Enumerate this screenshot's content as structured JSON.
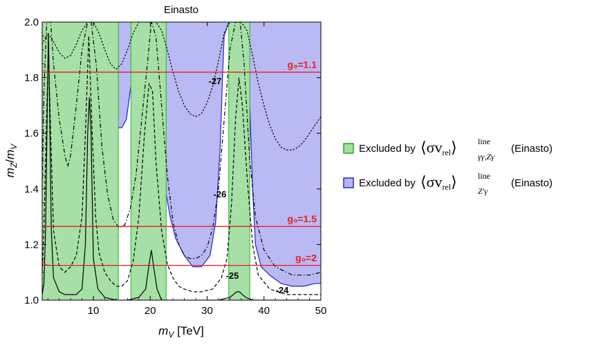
{
  "chart_data": {
    "type": "line",
    "title": "Einasto",
    "xlabel": "m_V [TeV]",
    "ylabel": "m_Z/m_V",
    "xlim": [
      1,
      50
    ],
    "ylim": [
      1.0,
      2.0
    ],
    "x_ticks": [
      10,
      20,
      30,
      40,
      50
    ],
    "y_ticks": [
      1.0,
      1.2,
      1.4,
      1.6,
      1.8,
      2.0
    ],
    "x_tick_labels": [
      "10",
      "20",
      "30",
      "40",
      "50"
    ],
    "y_tick_labels": [
      "1.0",
      "1.2",
      "1.4",
      "1.6",
      "1.8",
      "2.0"
    ],
    "excluded_green_bands": [
      [
        1,
        14.4
      ],
      [
        16.6,
        22.8
      ],
      [
        33.8,
        37.5
      ]
    ],
    "excluded_blue_boundary": [
      [
        14.4,
        1.62
      ],
      [
        15.0,
        1.62
      ],
      [
        15.8,
        1.65
      ],
      [
        16.6,
        1.77
      ],
      [
        22.8,
        1.38
      ],
      [
        23.5,
        1.3
      ],
      [
        24.5,
        1.22
      ],
      [
        26,
        1.16
      ],
      [
        27.5,
        1.12
      ],
      [
        29,
        1.12
      ],
      [
        30.5,
        1.16
      ],
      [
        31.5,
        1.28
      ],
      [
        32.3,
        1.55
      ],
      [
        32.7,
        1.8
      ],
      [
        33.0,
        1.95
      ],
      [
        33.8,
        2.0
      ],
      [
        37.5,
        1.7
      ],
      [
        38.0,
        1.4
      ],
      [
        38.5,
        1.2
      ],
      [
        39.5,
        1.12
      ],
      [
        41,
        1.09
      ],
      [
        43,
        1.06
      ],
      [
        45,
        1.05
      ],
      [
        47,
        1.05
      ],
      [
        49,
        1.06
      ],
      [
        50,
        1.06
      ]
    ],
    "horizontal_lines": [
      {
        "label": "g₀=1.1",
        "y": 1.82
      },
      {
        "label": "g₀=1.5",
        "y": 1.265
      },
      {
        "label": "g₀=2",
        "y": 1.125
      }
    ],
    "contour_labels": [
      "-27",
      "-26",
      "-25",
      "-24"
    ],
    "series": [
      {
        "label": "-24",
        "style": "solid",
        "x": [
          1,
          1.3,
          1.6,
          1.9,
          2.1,
          2.3,
          2.6,
          3,
          4,
          5,
          6,
          7,
          8,
          8.6,
          9,
          9.3,
          9.6,
          10,
          10.8,
          12,
          14,
          16,
          18,
          19.2,
          19.8,
          20.2,
          20.6,
          21.2,
          22,
          24,
          28,
          32,
          34,
          35.2,
          35.7,
          36.2,
          36.8,
          38,
          42,
          46,
          50
        ],
        "y": [
          1.02,
          1.06,
          1.25,
          1.7,
          1.96,
          1.7,
          1.25,
          1.08,
          1.03,
          1.02,
          1.02,
          1.02,
          1.04,
          1.2,
          1.6,
          1.73,
          1.6,
          1.15,
          1.04,
          1.01,
          1.0,
          1.0,
          1.01,
          1.04,
          1.13,
          1.18,
          1.12,
          1.04,
          1.0,
          1.0,
          1.0,
          1.0,
          1.01,
          1.03,
          1.03,
          1.02,
          1.01,
          1.0,
          1.0,
          1.0,
          1.0
        ]
      },
      {
        "label": "-25",
        "style": "dashed",
        "x": [
          1,
          1.3,
          1.7,
          2.1,
          2.5,
          3,
          4,
          5,
          6,
          7,
          8,
          8.6,
          9.2,
          9.8,
          10.4,
          11,
          12,
          13,
          14,
          15,
          16,
          17,
          18,
          19,
          19.8,
          20.4,
          21,
          22,
          23,
          24,
          25,
          26,
          27.5,
          29,
          31,
          32.5,
          33.5,
          34.3,
          35,
          35.6,
          36.2,
          37,
          38,
          39,
          41,
          44,
          47,
          50
        ],
        "y": [
          1.1,
          1.25,
          1.6,
          1.9,
          1.6,
          1.25,
          1.12,
          1.1,
          1.12,
          1.16,
          1.3,
          1.6,
          1.95,
          1.6,
          1.3,
          1.17,
          1.1,
          1.07,
          1.05,
          1.05,
          1.07,
          1.14,
          1.3,
          1.6,
          1.78,
          1.75,
          1.5,
          1.25,
          1.13,
          1.08,
          1.05,
          1.04,
          1.03,
          1.03,
          1.04,
          1.08,
          1.15,
          1.35,
          1.65,
          1.8,
          1.7,
          1.45,
          1.2,
          1.09,
          1.04,
          1.02,
          1.02,
          1.02
        ]
      },
      {
        "label": "-26",
        "style": "dashdot",
        "x": [
          1,
          1.3,
          1.8,
          2.5,
          3,
          4,
          5,
          5.5,
          6,
          7,
          8,
          9,
          9.6,
          10.5,
          11.5,
          12.5,
          13.5,
          14.5,
          15.5,
          16.5,
          17.5,
          18.5,
          19.5,
          20.2,
          21,
          22,
          23,
          24,
          25,
          26,
          27,
          28,
          29,
          30,
          31,
          32,
          33,
          34,
          35,
          35.8,
          36.5,
          37.5,
          38.5,
          40,
          42,
          45,
          48,
          50
        ],
        "y": [
          1.4,
          1.75,
          2.0,
          2.0,
          1.85,
          1.65,
          1.52,
          1.48,
          1.52,
          1.7,
          1.9,
          2.0,
          2.0,
          1.85,
          1.55,
          1.38,
          1.29,
          1.26,
          1.27,
          1.33,
          1.45,
          1.65,
          1.85,
          2.0,
          1.95,
          1.7,
          1.45,
          1.28,
          1.2,
          1.16,
          1.15,
          1.15,
          1.16,
          1.19,
          1.26,
          1.4,
          1.65,
          1.9,
          2.0,
          2.0,
          1.85,
          1.5,
          1.3,
          1.18,
          1.12,
          1.09,
          1.09,
          1.1
        ]
      },
      {
        "label": "-27",
        "style": "dotted",
        "x": [
          1,
          2,
          3,
          4,
          5,
          6,
          7,
          8,
          9,
          9.5,
          10,
          11,
          12,
          13,
          14,
          15,
          16,
          17,
          18,
          19,
          20,
          21,
          22,
          23,
          24,
          25,
          26,
          27,
          28,
          29,
          30,
          31,
          32,
          33,
          34,
          35,
          36,
          37,
          38,
          39,
          40,
          41,
          42,
          43,
          44,
          45,
          46,
          47,
          48,
          49,
          50
        ],
        "y": [
          1.92,
          1.96,
          1.93,
          1.89,
          1.87,
          1.88,
          1.92,
          1.97,
          2.0,
          2.0,
          2.0,
          1.96,
          1.9,
          1.85,
          1.83,
          1.85,
          1.9,
          1.96,
          2.0,
          2.0,
          2.0,
          2.0,
          1.97,
          1.9,
          1.82,
          1.75,
          1.7,
          1.67,
          1.66,
          1.67,
          1.71,
          1.77,
          1.86,
          1.96,
          2.0,
          2.0,
          2.0,
          1.97,
          1.88,
          1.78,
          1.7,
          1.63,
          1.58,
          1.55,
          1.54,
          1.54,
          1.55,
          1.57,
          1.6,
          1.63,
          1.66
        ]
      }
    ],
    "legend": {
      "placement": "right",
      "entries": [
        {
          "text": "Excluded by",
          "math_base": "⟨σv",
          "math_sub": "rel",
          "math_close": "⟩",
          "sup": "line",
          "sub": "γγ,Zγ",
          "suffix": "(Einasto)",
          "color": "#9fe09f",
          "border": "#2ea02e"
        },
        {
          "text": "Excluded by",
          "math_base": "⟨σv",
          "math_sub": "rel",
          "math_close": "⟩",
          "sup": "line",
          "sub": "Z′γ",
          "suffix": "(Einasto)",
          "color": "#b6b6f6",
          "border": "#2828d0"
        }
      ]
    },
    "colors": {
      "green_fill": "#a6e0a6",
      "green_edge": "#29b129",
      "blue_fill": "#b9b9f3",
      "blue_edge": "#2020d0",
      "red_line": "#e81d1d",
      "curve": "#000000"
    }
  }
}
